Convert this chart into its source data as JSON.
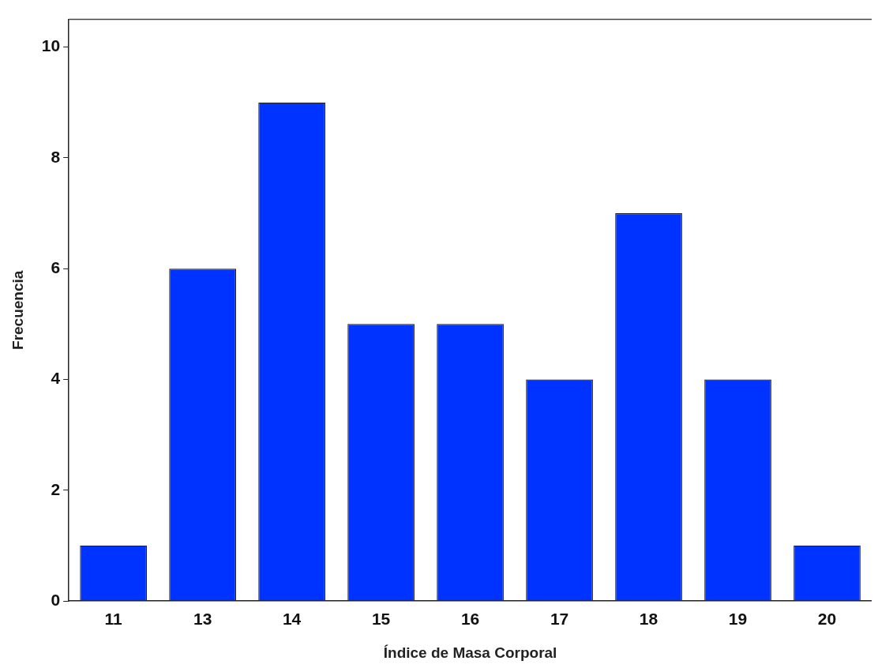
{
  "chart_data": {
    "type": "bar",
    "xlabel": "Índice de Masa Corporal",
    "ylabel": "Frecuencia",
    "categories": [
      "11",
      "13",
      "14",
      "15",
      "16",
      "17",
      "18",
      "19",
      "20"
    ],
    "values": [
      1,
      6,
      9,
      5,
      5,
      4,
      7,
      4,
      1
    ],
    "color": "#0033ff",
    "ylim": [
      0,
      10.5
    ],
    "yticks": [
      0,
      2,
      4,
      6,
      8,
      10
    ],
    "grid": false,
    "legend": false
  }
}
